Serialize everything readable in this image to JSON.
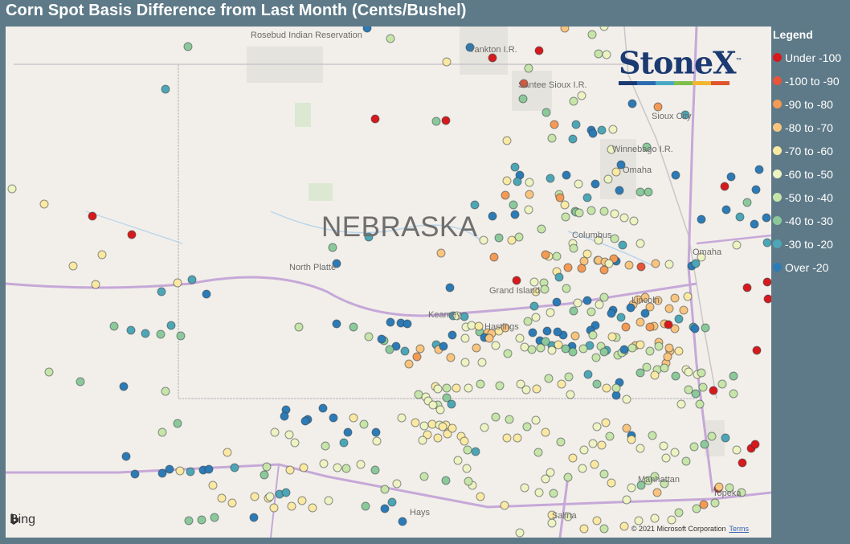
{
  "title": "Corn Spot Basis Difference from Last Month (Cents/Bushel)",
  "legend": {
    "title": "Legend",
    "items": [
      {
        "label": "Under -100",
        "color": "#d7191c"
      },
      {
        "label": "-100 to -90",
        "color": "#e8553a"
      },
      {
        "label": "-90 to -80",
        "color": "#f59a53"
      },
      {
        "label": "-80 to -70",
        "color": "#f9c47d"
      },
      {
        "label": "-70 to -60",
        "color": "#fbe9a3"
      },
      {
        "label": "-60 to -50",
        "color": "#eef3c2"
      },
      {
        "label": "-50 to -40",
        "color": "#c7e5a8"
      },
      {
        "label": "-40 to -30",
        "color": "#8cc99a"
      },
      {
        "label": "-30 to -20",
        "color": "#4da6b5"
      },
      {
        "label": "Over -20",
        "color": "#2c7bb6"
      }
    ]
  },
  "map": {
    "state_label": "NEBRASKA",
    "places": [
      "Rosebud Indian Reservation",
      "Yankton I.R.",
      "Santee Sioux I.R.",
      "Sioux City",
      "Winnebago I.R.",
      "Omaha",
      "Columbus",
      "North Platte",
      "Grand Island",
      "Kearney",
      "Hastings",
      "Lincoln",
      "Omaha",
      "Manhattan",
      "Topeka",
      "Hays",
      "Salina"
    ],
    "attribution": "© 2021 Microsoft Corporation",
    "terms": "Terms",
    "bing": "Bing"
  },
  "logo": {
    "text": "StoneX",
    "tm": "™",
    "bar_colors": [
      "#1c3a72",
      "#2b6cb0",
      "#48a9c5",
      "#7fbf4d",
      "#f2b632",
      "#e0542e"
    ]
  }
}
